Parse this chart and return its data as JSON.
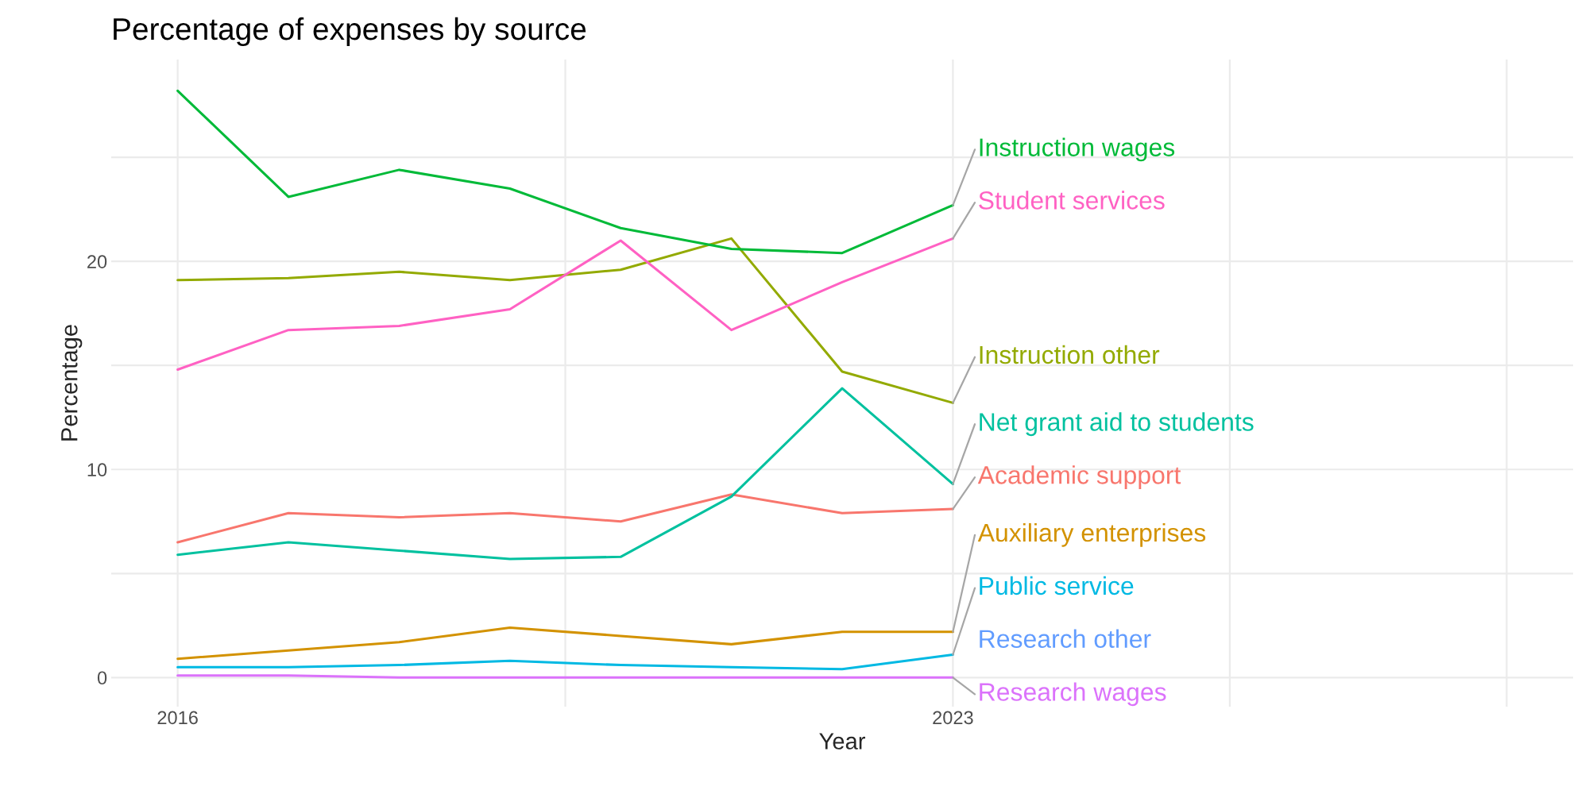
{
  "chart_data": {
    "type": "line",
    "title": "Percentage of expenses by source",
    "xlabel": "Year",
    "ylabel": "Percentage",
    "x": [
      2016,
      2017,
      2018,
      2019,
      2020,
      2021,
      2022,
      2023
    ],
    "xlim": [
      2015.4,
      2028.6
    ],
    "xticks": [
      2016,
      {
        "value": 2019.5,
        "label": null
      },
      2023,
      {
        "value": 2025.5,
        "label": null
      },
      {
        "value": 2028,
        "label": null
      }
    ],
    "ylim": [
      -1.4,
      29.7
    ],
    "yticks": [
      0,
      {
        "value": 5,
        "label": null
      },
      10,
      {
        "value": 15,
        "label": null
      },
      20,
      {
        "value": 25,
        "label": null
      }
    ],
    "grid": true,
    "legend": false,
    "series": [
      {
        "name": "Academic support",
        "color": "#f8766d",
        "values": [
          6.5,
          7.9,
          7.7,
          7.9,
          7.5,
          8.8,
          7.9,
          8.1
        ]
      },
      {
        "name": "Auxiliary enterprises",
        "color": "#d39200",
        "values": [
          0.9,
          1.3,
          1.7,
          2.4,
          2.0,
          1.6,
          2.2,
          2.2
        ]
      },
      {
        "name": "Instruction other",
        "color": "#93aa00",
        "values": [
          19.1,
          19.2,
          19.5,
          19.1,
          19.6,
          21.1,
          14.7,
          13.2
        ]
      },
      {
        "name": "Instruction wages",
        "color": "#00ba38",
        "values": [
          28.2,
          23.1,
          24.4,
          23.5,
          21.6,
          20.6,
          20.4,
          22.7
        ]
      },
      {
        "name": "Net grant aid to students",
        "color": "#00c19f",
        "values": [
          5.9,
          6.5,
          6.1,
          5.7,
          5.8,
          8.7,
          13.9,
          9.3
        ]
      },
      {
        "name": "Public service",
        "color": "#00b9e3",
        "values": [
          0.5,
          0.5,
          0.6,
          0.8,
          0.6,
          0.5,
          0.4,
          1.1
        ]
      },
      {
        "name": "Research other",
        "color": "#619cff",
        "values": [
          null,
          null,
          null,
          null,
          null,
          null,
          null,
          null
        ]
      },
      {
        "name": "Research wages",
        "color": "#db72fb",
        "values": [
          0.1,
          0.1,
          0.0,
          0.0,
          0.0,
          0.0,
          0.0,
          0.0
        ]
      },
      {
        "name": "Student services",
        "color": "#ff61c3",
        "values": [
          14.8,
          16.7,
          16.9,
          17.7,
          21.0,
          16.7,
          19.0,
          21.1
        ]
      }
    ]
  }
}
